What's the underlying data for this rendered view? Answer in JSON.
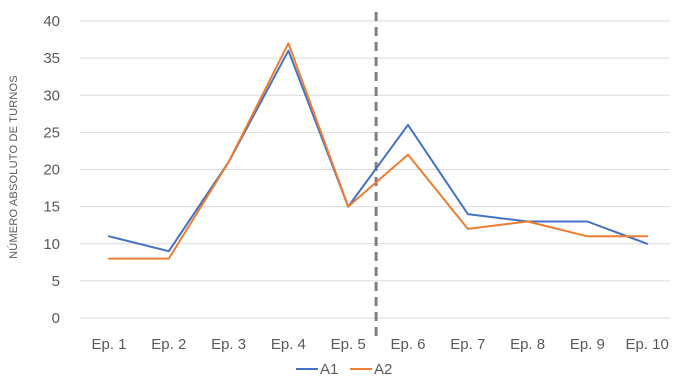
{
  "chart_data": {
    "type": "line",
    "title": "",
    "xlabel": "",
    "ylabel": "NÚMERO ABSOLUTO DE TURNOS",
    "categories": [
      "Ep. 1",
      "Ep. 2",
      "Ep. 3",
      "Ep. 4",
      "Ep. 5",
      "Ep. 6",
      "Ep. 7",
      "Ep. 8",
      "Ep. 9",
      "Ep. 10"
    ],
    "ylim": [
      0,
      40
    ],
    "yticks": [
      0,
      5,
      10,
      15,
      20,
      25,
      30,
      35,
      40
    ],
    "grid": true,
    "legend_position": "bottom",
    "divider_after_category": "Ep. 5",
    "series": [
      {
        "name": "A1",
        "color": "#4472C4",
        "values": [
          11,
          9,
          21,
          36,
          15,
          26,
          14,
          13,
          13,
          10
        ]
      },
      {
        "name": "A2",
        "color": "#ED7D31",
        "values": [
          8,
          8,
          21,
          37,
          15,
          22,
          12,
          13,
          11,
          11
        ]
      }
    ],
    "gridline_color": "#D9D9D9",
    "divider_color": "#7F7F7F"
  }
}
